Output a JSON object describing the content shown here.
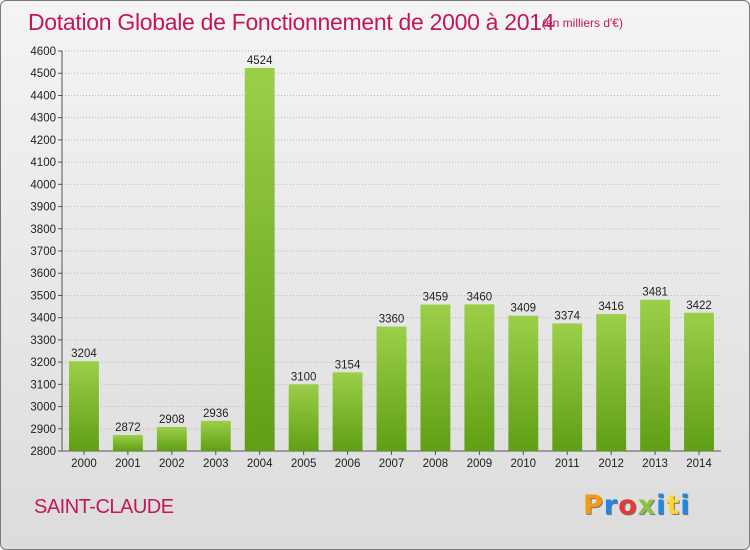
{
  "header": {
    "title": "Dotation Globale de Fonctionnement de 2000 à 2014",
    "subtitle": "(en milliers d'€)"
  },
  "footer": {
    "town": "SAINT-CLAUDE",
    "logo": "Proxiti",
    "logo_colors": [
      "#f39c12",
      "#1e88e5",
      "#e53935",
      "#8bc34a",
      "#1e88e5",
      "#fdd835",
      "#1e88e5"
    ]
  },
  "colors": {
    "bar_light": "#9ccf49",
    "bar_dark": "#5f9f13",
    "text_accent": "#c2185b",
    "grid": "#bbbbbb"
  },
  "chart_data": {
    "type": "bar",
    "title": "Dotation Globale de Fonctionnement de 2000 à 2014",
    "subtitle": "(en milliers d'€)",
    "categories": [
      "2000",
      "2001",
      "2002",
      "2003",
      "2004",
      "2005",
      "2006",
      "2007",
      "2008",
      "2009",
      "2010",
      "2011",
      "2012",
      "2013",
      "2014"
    ],
    "values": [
      3204,
      2872,
      2908,
      2936,
      4524,
      3100,
      3154,
      3360,
      3459,
      3460,
      3409,
      3374,
      3416,
      3481,
      3422
    ],
    "ylim": [
      2800,
      4600
    ],
    "yticks": [
      2800,
      2900,
      3000,
      3100,
      3200,
      3300,
      3400,
      3500,
      3600,
      3700,
      3800,
      3900,
      4000,
      4100,
      4200,
      4300,
      4400,
      4500,
      4600
    ],
    "grid": true,
    "xlabel": "",
    "ylabel": ""
  }
}
